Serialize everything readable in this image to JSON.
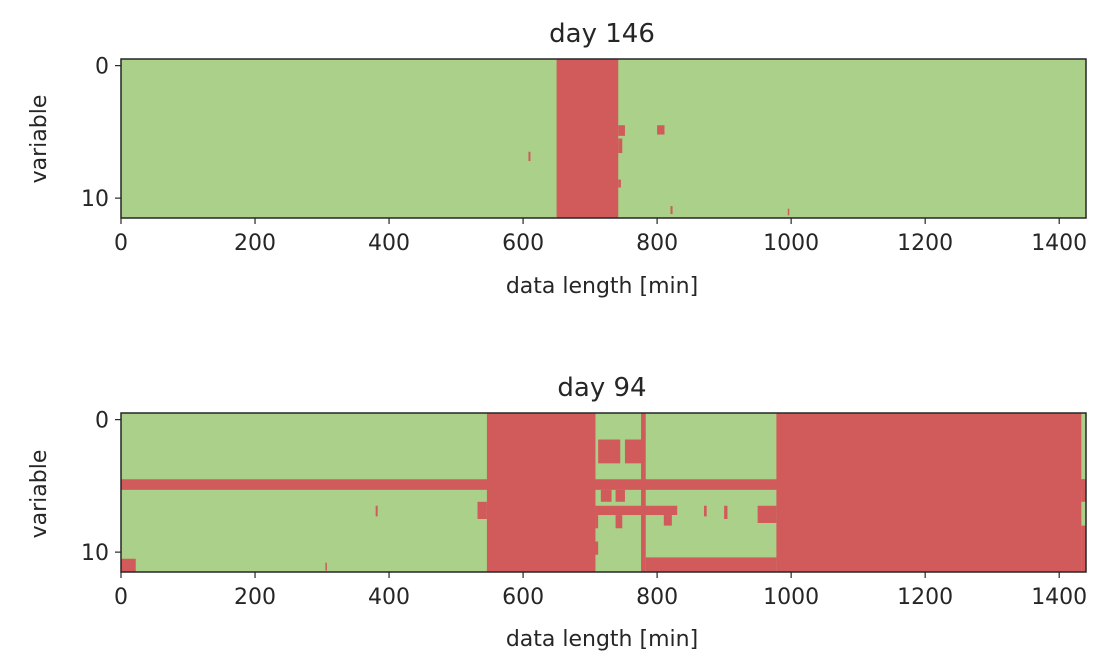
{
  "colors": {
    "ok": "#aad08a",
    "missing": "#d15b5b",
    "axis": "#262626"
  },
  "chart_data": [
    {
      "type": "heatmap",
      "title": "day 146",
      "xlabel": "data length [min]",
      "ylabel": "variable",
      "xlim": [
        0,
        1440
      ],
      "ylim": [
        11.5,
        -0.5
      ],
      "xticks": [
        0,
        200,
        400,
        600,
        800,
        1000,
        1200,
        1400
      ],
      "yticks": [
        0,
        10
      ],
      "n_variables": 12,
      "missing_blocks": [
        {
          "x0": 650,
          "x1": 742,
          "y0": -0.5,
          "y1": 11.5
        },
        {
          "x0": 742,
          "x1": 752,
          "y0": 4.5,
          "y1": 5.3
        },
        {
          "x0": 742,
          "x1": 748,
          "y0": 5.5,
          "y1": 6.6
        },
        {
          "x0": 742,
          "x1": 746,
          "y0": 8.6,
          "y1": 9.2
        },
        {
          "x0": 800,
          "x1": 811,
          "y0": 4.5,
          "y1": 5.2
        },
        {
          "x0": 608,
          "x1": 611,
          "y0": 6.5,
          "y1": 7.2
        },
        {
          "x0": 820,
          "x1": 823,
          "y0": 10.6,
          "y1": 11.2
        },
        {
          "x0": 995,
          "x1": 997,
          "y0": 10.8,
          "y1": 11.3
        }
      ]
    },
    {
      "type": "heatmap",
      "title": "day 94",
      "xlabel": "data length [min]",
      "ylabel": "variable",
      "xlim": [
        0,
        1440
      ],
      "ylim": [
        11.5,
        -0.5
      ],
      "xticks": [
        0,
        200,
        400,
        600,
        800,
        1000,
        1200,
        1400
      ],
      "yticks": [
        0,
        10
      ],
      "n_variables": 12,
      "missing_blocks": [
        {
          "x0": 0,
          "x1": 1440,
          "y0": 4.5,
          "y1": 5.3
        },
        {
          "x0": 546,
          "x1": 708,
          "y0": -0.5,
          "y1": 11.5
        },
        {
          "x0": 978,
          "x1": 1433,
          "y0": -0.5,
          "y1": 11.5
        },
        {
          "x0": 1433,
          "x1": 1440,
          "y0": 4.5,
          "y1": 6.2
        },
        {
          "x0": 1433,
          "x1": 1440,
          "y0": 8.0,
          "y1": 11.5
        },
        {
          "x0": 0,
          "x1": 22,
          "y0": 10.5,
          "y1": 11.5
        },
        {
          "x0": 712,
          "x1": 745,
          "y0": 1.5,
          "y1": 3.3
        },
        {
          "x0": 752,
          "x1": 780,
          "y0": 1.5,
          "y1": 3.3
        },
        {
          "x0": 776,
          "x1": 783,
          "y0": -0.5,
          "y1": 11.5
        },
        {
          "x0": 708,
          "x1": 830,
          "y0": 6.5,
          "y1": 7.2
        },
        {
          "x0": 716,
          "x1": 732,
          "y0": 5.3,
          "y1": 6.2
        },
        {
          "x0": 738,
          "x1": 752,
          "y0": 5.3,
          "y1": 6.2
        },
        {
          "x0": 738,
          "x1": 748,
          "y0": 7.2,
          "y1": 8.2
        },
        {
          "x0": 810,
          "x1": 822,
          "y0": 7.2,
          "y1": 8.0
        },
        {
          "x0": 708,
          "x1": 712,
          "y0": 7.2,
          "y1": 8.2
        },
        {
          "x0": 783,
          "x1": 978,
          "y0": 10.4,
          "y1": 11.5
        },
        {
          "x0": 950,
          "x1": 978,
          "y0": 6.5,
          "y1": 7.8
        },
        {
          "x0": 900,
          "x1": 905,
          "y0": 6.5,
          "y1": 7.5
        },
        {
          "x0": 870,
          "x1": 874,
          "y0": 6.5,
          "y1": 7.3
        },
        {
          "x0": 532,
          "x1": 546,
          "y0": 6.2,
          "y1": 7.5
        },
        {
          "x0": 380,
          "x1": 383,
          "y0": 6.5,
          "y1": 7.3
        },
        {
          "x0": 305,
          "x1": 307,
          "y0": 10.8,
          "y1": 11.4
        },
        {
          "x0": 700,
          "x1": 712,
          "y0": 9.2,
          "y1": 10.2
        }
      ]
    }
  ]
}
